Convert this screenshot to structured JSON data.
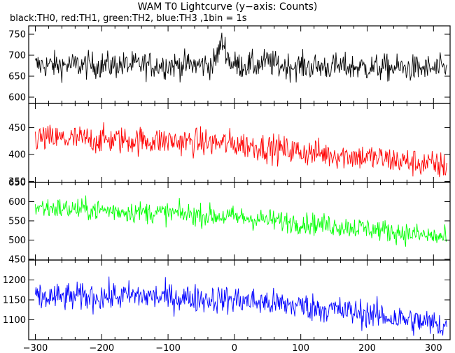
{
  "title": "WAM T0 Lightcurve (y−axis: Counts)",
  "subtitle": "black:TH0, red:TH1, green:TH2, blue:TH3 ,1bin = 1s",
  "chart_data": {
    "type": "line",
    "x_range": [
      -310,
      325
    ],
    "x_ticks": [
      -300,
      -200,
      -100,
      0,
      100,
      200,
      300
    ],
    "x_tick_labels": [
      "−300",
      "−200",
      "−100",
      "0",
      "100",
      "200",
      "300"
    ],
    "bin_seconds": 1,
    "series": [
      {
        "name": "TH0",
        "color": "#000000",
        "ylim": [
          585,
          770
        ],
        "y_ticks": [
          600,
          650,
          700,
          750
        ],
        "profile": [
          [
            -300,
            676
          ],
          [
            0,
            677
          ],
          [
            320,
            667
          ]
        ],
        "noise": 27,
        "peaks": [
          [
            -18,
            52,
            6
          ],
          [
            50,
            10,
            6
          ]
        ]
      },
      {
        "name": "TH1",
        "color": "#ff0000",
        "ylim": [
          348,
          495
        ],
        "y_ticks": [
          350,
          400,
          450
        ],
        "profile": [
          [
            -300,
            430
          ],
          [
            -100,
            425
          ],
          [
            0,
            420
          ],
          [
            100,
            405
          ],
          [
            200,
            395
          ],
          [
            320,
            378
          ]
        ],
        "noise": 22,
        "peaks": []
      },
      {
        "name": "TH2",
        "color": "#00ff00",
        "ylim": [
          448,
          650
        ],
        "y_ticks": [
          450,
          500,
          550,
          600,
          650
        ],
        "profile": [
          [
            -300,
            585
          ],
          [
            -100,
            570
          ],
          [
            0,
            560
          ],
          [
            100,
            545
          ],
          [
            200,
            530
          ],
          [
            320,
            505
          ]
        ],
        "noise": 24,
        "peaks": []
      },
      {
        "name": "TH3",
        "color": "#0000ff",
        "ylim": [
          1050,
          1250
        ],
        "y_ticks": [
          1100,
          1150,
          1200
        ],
        "profile": [
          [
            -300,
            1155
          ],
          [
            -150,
            1160
          ],
          [
            0,
            1150
          ],
          [
            100,
            1135
          ],
          [
            200,
            1115
          ],
          [
            320,
            1085
          ]
        ],
        "noise": 30,
        "peaks": []
      }
    ]
  }
}
